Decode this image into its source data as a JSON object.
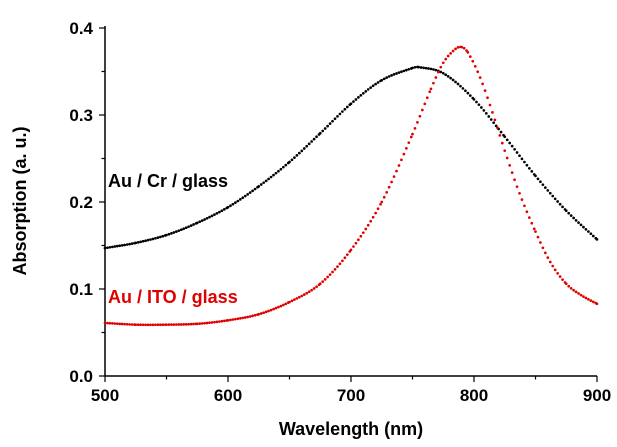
{
  "chart_data": {
    "type": "line",
    "title": "",
    "xlabel": "Wavelength (nm)",
    "ylabel": "Absorption (a. u.)",
    "xlim": [
      500,
      900
    ],
    "ylim": [
      0.0,
      0.4
    ],
    "x_ticks": [
      500,
      600,
      700,
      800,
      900
    ],
    "x_tick_labels": [
      "500",
      "600",
      "700",
      "800",
      "900"
    ],
    "y_ticks": [
      0.0,
      0.1,
      0.2,
      0.3,
      0.4
    ],
    "y_tick_labels": [
      "0.0",
      "0.1",
      "0.2",
      "0.3",
      "0.4"
    ],
    "grid": false,
    "legend": "inline labels inside plot area (left side)",
    "series": [
      {
        "name": "Au / Cr / glass",
        "color": "#000000",
        "x": [
          500,
          525,
          550,
          575,
          600,
          625,
          650,
          675,
          700,
          725,
          750,
          755,
          775,
          800,
          825,
          850,
          875,
          900
        ],
        "y": [
          0.147,
          0.153,
          0.162,
          0.176,
          0.194,
          0.218,
          0.246,
          0.279,
          0.313,
          0.34,
          0.354,
          0.355,
          0.348,
          0.318,
          0.275,
          0.23,
          0.19,
          0.157
        ]
      },
      {
        "name": "Au / ITO / glass",
        "color": "#e00000",
        "x": [
          500,
          525,
          550,
          575,
          600,
          625,
          650,
          675,
          700,
          725,
          750,
          765,
          775,
          785,
          790,
          795,
          805,
          815,
          825,
          837,
          850,
          862,
          875,
          887,
          900
        ],
        "y": [
          0.061,
          0.059,
          0.059,
          0.06,
          0.064,
          0.071,
          0.085,
          0.106,
          0.145,
          0.2,
          0.278,
          0.33,
          0.36,
          0.376,
          0.378,
          0.372,
          0.343,
          0.303,
          0.259,
          0.21,
          0.166,
          0.131,
          0.106,
          0.093,
          0.083
        ]
      }
    ],
    "annotations": [
      {
        "text": "Au / Cr / glass",
        "color": "#000000"
      },
      {
        "text": "Au / ITO / glass",
        "color": "#e00000"
      }
    ]
  }
}
